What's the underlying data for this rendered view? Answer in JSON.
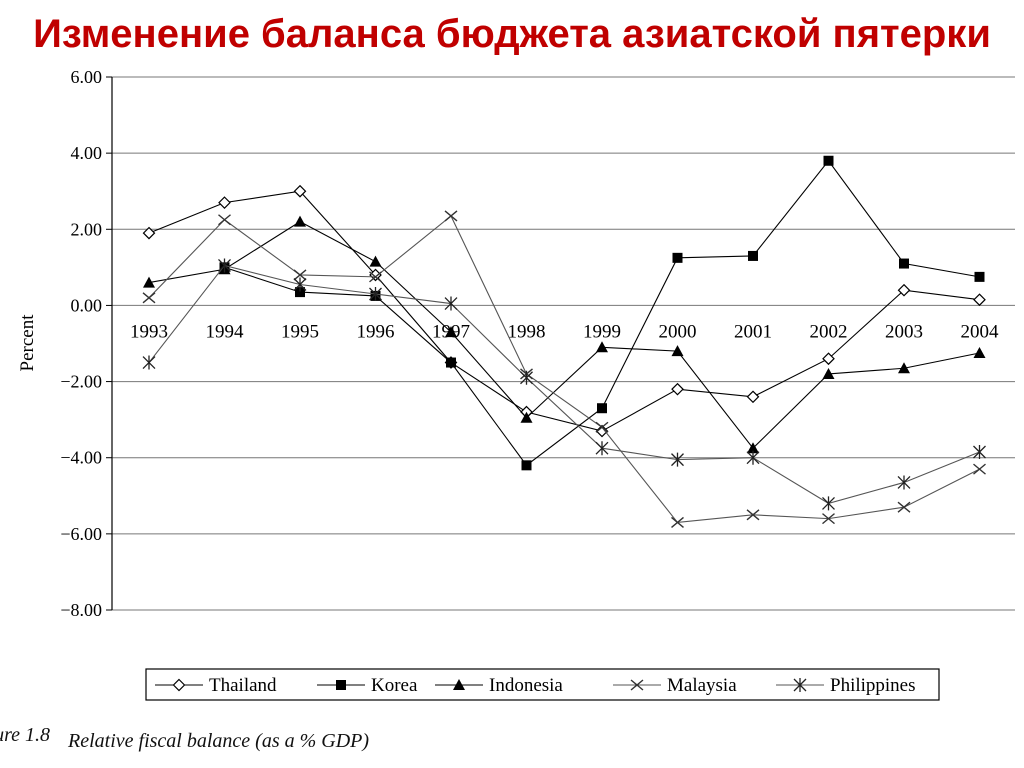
{
  "slide": {
    "title": "Изменение баланса бюджета азиатской пятерки"
  },
  "caption": {
    "figure_number": "ure 1.8",
    "text": "Relative fiscal balance (as a % GDP)"
  },
  "chart_data": {
    "type": "line",
    "title": "",
    "xlabel": "",
    "ylabel": "Percent",
    "x": [
      "1993",
      "1994",
      "1995",
      "1996",
      "1997",
      "1998",
      "1999",
      "2000",
      "2001",
      "2002",
      "2003",
      "2004"
    ],
    "ylim": [
      -8,
      6
    ],
    "yticks": [
      6,
      4,
      2,
      0,
      -2,
      -4,
      -6,
      -8
    ],
    "ytick_labels": [
      "6.00",
      "4.00",
      "2.00",
      "0.00",
      "−2.00",
      "−4.00",
      "−6.00",
      "−8.00"
    ],
    "grid": "horizontal",
    "legend_position": "bottom",
    "series": [
      {
        "name": "Thailand",
        "marker": "open-diamond",
        "color": "#000000",
        "values": [
          1.9,
          2.7,
          3.0,
          0.8,
          -1.5,
          -2.8,
          -3.3,
          -2.2,
          -2.4,
          -1.4,
          0.4,
          0.15
        ]
      },
      {
        "name": "Korea",
        "marker": "filled-square",
        "color": "#000000",
        "values": [
          null,
          1.0,
          0.35,
          0.25,
          -1.5,
          -4.2,
          -2.7,
          1.25,
          1.3,
          3.8,
          1.1,
          0.75
        ]
      },
      {
        "name": "Indonesia",
        "marker": "filled-triangle",
        "color": "#000000",
        "values": [
          0.6,
          0.95,
          2.2,
          1.15,
          -0.7,
          -2.95,
          -1.1,
          -1.2,
          -3.75,
          -1.8,
          -1.65,
          -1.25
        ]
      },
      {
        "name": "Malaysia",
        "marker": "x",
        "color": "#555555",
        "values": [
          0.2,
          2.25,
          0.8,
          0.75,
          2.35,
          -1.8,
          -3.2,
          -5.7,
          -5.5,
          -5.6,
          -5.3,
          -4.3
        ]
      },
      {
        "name": "Philippines",
        "marker": "star",
        "color": "#555555",
        "values": [
          -1.5,
          1.05,
          0.55,
          0.3,
          0.05,
          -1.9,
          -3.75,
          -4.05,
          -4.0,
          -5.2,
          -4.65,
          -3.85
        ]
      }
    ]
  }
}
